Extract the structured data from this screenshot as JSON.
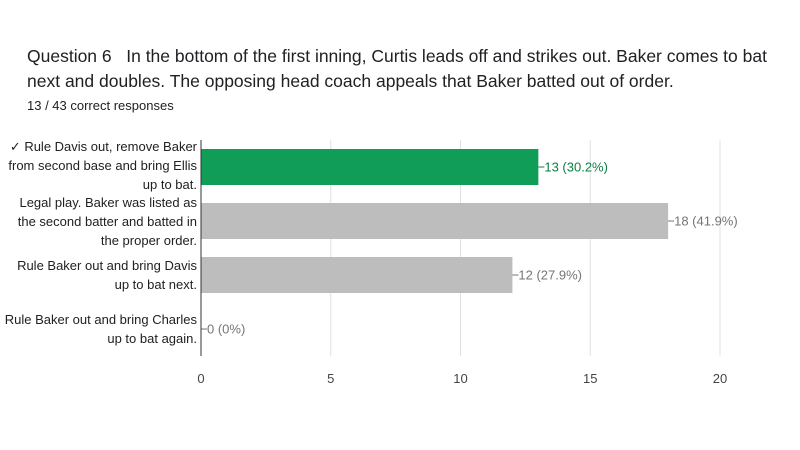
{
  "question": {
    "number": "Question 6",
    "text": "In the bottom of the first inning, Curtis leads off and strikes out.  Baker comes to bat next and doubles. The opposing head coach appeals that Baker batted out of order."
  },
  "responses_summary": "13 / 43 correct responses",
  "colors": {
    "correct": "#0f9d58",
    "default": "#bdbdbd",
    "correct_label": "#0b8043",
    "label": "#757575",
    "grid": "#e0e0e0",
    "axis": "#333333"
  },
  "chart_data": {
    "type": "bar",
    "orientation": "horizontal",
    "categories": [
      "✓ Rule Davis out, remove Baker from second base and bring Ellis up to bat.",
      "Legal play. Baker was listed as the second batter and batted in the proper order.",
      "Rule Baker out and bring Davis up to bat next.",
      "Rule Baker out and bring Charles up to bat again."
    ],
    "category_lines": [
      [
        "✓ Rule Davis out, remove Baker",
        "from second base and bring Ellis",
        "up to bat."
      ],
      [
        "Legal play. Baker was listed as",
        "the second batter and batted in",
        "the proper order."
      ],
      [
        "Rule Baker out and bring Davis",
        "up to bat next."
      ],
      [
        "Rule Baker out and bring Charles",
        "up to bat again."
      ]
    ],
    "values": [
      13,
      18,
      12,
      0
    ],
    "value_labels": [
      "13 (30.2%)",
      "18 (41.9%)",
      "12 (27.9%)",
      "0 (0%)"
    ],
    "correct_index": 0,
    "xlim": [
      0,
      20
    ],
    "xticks": [
      "0",
      "5",
      "10",
      "15",
      "20"
    ],
    "grid": true
  }
}
